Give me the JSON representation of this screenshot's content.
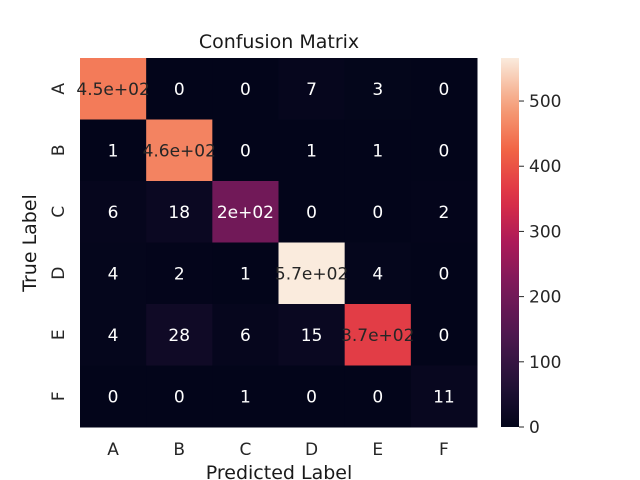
{
  "chart_data": {
    "type": "heatmap",
    "title": "Confusion Matrix",
    "xlabel": "Predicted Label",
    "ylabel": "True Label",
    "x_categories": [
      "A",
      "B",
      "C",
      "D",
      "E",
      "F"
    ],
    "y_categories": [
      "A",
      "B",
      "C",
      "D",
      "E",
      "F"
    ],
    "values": [
      [
        450,
        0,
        0,
        7,
        3,
        0
      ],
      [
        1,
        460,
        0,
        1,
        1,
        0
      ],
      [
        6,
        18,
        200,
        0,
        0,
        2
      ],
      [
        4,
        2,
        1,
        570,
        4,
        0
      ],
      [
        4,
        28,
        6,
        15,
        370,
        0
      ],
      [
        0,
        0,
        1,
        0,
        0,
        11
      ]
    ],
    "annotations": [
      [
        "4.5e+02",
        "0",
        "0",
        "7",
        "3",
        "0"
      ],
      [
        "1",
        "4.6e+02",
        "0",
        "1",
        "1",
        "0"
      ],
      [
        "6",
        "18",
        "2e+02",
        "0",
        "0",
        "2"
      ],
      [
        "4",
        "2",
        "1",
        "5.7e+02",
        "4",
        "0"
      ],
      [
        "4",
        "28",
        "6",
        "15",
        "3.7e+02",
        "0"
      ],
      [
        "0",
        "0",
        "1",
        "0",
        "0",
        "11"
      ]
    ],
    "colorbar": {
      "min": 0,
      "max": 566,
      "ticks": [
        0,
        100,
        200,
        300,
        400,
        500
      ],
      "colormap": "rocket"
    },
    "grid": false
  }
}
